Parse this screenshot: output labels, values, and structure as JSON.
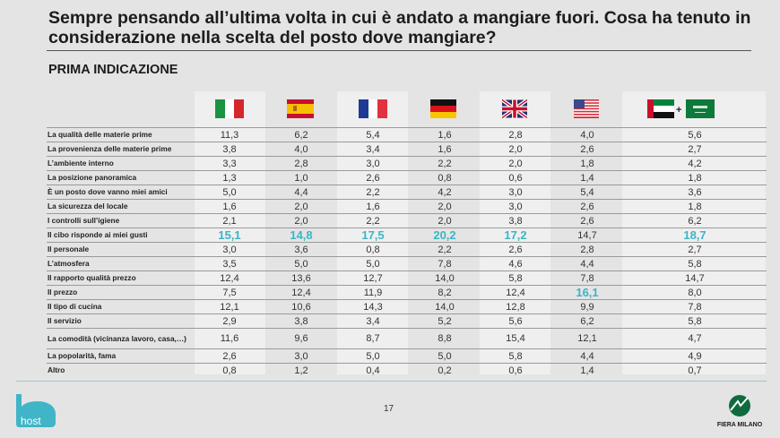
{
  "title": "Sempre pensando all’ultima volta in cui è andato a mangiare fuori. Cosa ha tenuto in considerazione nella scelta del posto dove mangiare?",
  "subtitle": "PRIMA INDICAZIONE",
  "page_number": "17",
  "logos": {
    "left": "host",
    "right": "FIERA MILANO"
  },
  "colors": {
    "highlight": "#3ab5c5",
    "background": "#e4e4e4"
  },
  "chart_data": {
    "type": "table",
    "columns": [
      "Italia",
      "Spagna",
      "Francia",
      "Germania",
      "Regno Unito",
      "USA",
      "Emirati Arabi + Arabia Saudita"
    ],
    "rows": [
      {
        "label": "La qualità delle materie prime",
        "values": [
          "11,3",
          "6,2",
          "5,4",
          "1,6",
          "2,8",
          "4,0",
          "5,6"
        ]
      },
      {
        "label": "La provenienza delle materie prime",
        "values": [
          "3,8",
          "4,0",
          "3,4",
          "1,6",
          "2,0",
          "2,6",
          "2,7"
        ]
      },
      {
        "label": "L’ambiente interno",
        "values": [
          "3,3",
          "2,8",
          "3,0",
          "2,2",
          "2,0",
          "1,8",
          "4,2"
        ]
      },
      {
        "label": "La posizione panoramica",
        "values": [
          "1,3",
          "1,0",
          "2,6",
          "0,8",
          "0,6",
          "1,4",
          "1,8"
        ]
      },
      {
        "label": "È un posto dove vanno miei amici",
        "values": [
          "5,0",
          "4,4",
          "2,2",
          "4,2",
          "3,0",
          "5,4",
          "3,6"
        ]
      },
      {
        "label": "La sicurezza del locale",
        "values": [
          "1,6",
          "2,0",
          "1,6",
          "2,0",
          "3,0",
          "2,6",
          "1,8"
        ]
      },
      {
        "label": "I controlli sull’igiene",
        "values": [
          "2,1",
          "2,0",
          "2,2",
          "2,0",
          "3,8",
          "2,6",
          "6,2"
        ]
      },
      {
        "label": "Il cibo risponde ai miei gusti",
        "values": [
          "15,1",
          "14,8",
          "17,5",
          "20,2",
          "17,2",
          "14,7",
          "18,7"
        ],
        "highlight": [
          true,
          true,
          true,
          true,
          true,
          false,
          true
        ]
      },
      {
        "label": "Il personale",
        "values": [
          "3,0",
          "3,6",
          "0,8",
          "2,2",
          "2,6",
          "2,8",
          "2,7"
        ]
      },
      {
        "label": "L’atmosfera",
        "values": [
          "3,5",
          "5,0",
          "5,0",
          "7,8",
          "4,6",
          "4,4",
          "5,8"
        ]
      },
      {
        "label": "Il rapporto qualità prezzo",
        "values": [
          "12,4",
          "13,6",
          "12,7",
          "14,0",
          "5,8",
          "7,8",
          "14,7"
        ]
      },
      {
        "label": "Il prezzo",
        "values": [
          "7,5",
          "12,4",
          "11,9",
          "8,2",
          "12,4",
          "16,1",
          "8,0"
        ],
        "highlight": [
          false,
          false,
          false,
          false,
          false,
          true,
          false
        ]
      },
      {
        "label": "Il tipo di cucina",
        "values": [
          "12,1",
          "10,6",
          "14,3",
          "14,0",
          "12,8",
          "9,9",
          "7,8"
        ]
      },
      {
        "label": "Il servizio",
        "values": [
          "2,9",
          "3,8",
          "3,4",
          "5,2",
          "5,6",
          "6,2",
          "5,8"
        ]
      },
      {
        "label": "La comodità (vicinanza lavoro, casa,…)",
        "values": [
          "11,6",
          "9,6",
          "8,7",
          "8,8",
          "15,4",
          "12,1",
          "4,7"
        ],
        "tall": true
      },
      {
        "label": "La popolarità, fama",
        "values": [
          "2,6",
          "3,0",
          "5,0",
          "5,0",
          "5,8",
          "4,4",
          "4,9"
        ]
      },
      {
        "label": "Altro",
        "values": [
          "0,8",
          "1,2",
          "0,4",
          "0,2",
          "0,6",
          "1,4",
          "0,7"
        ]
      }
    ]
  }
}
